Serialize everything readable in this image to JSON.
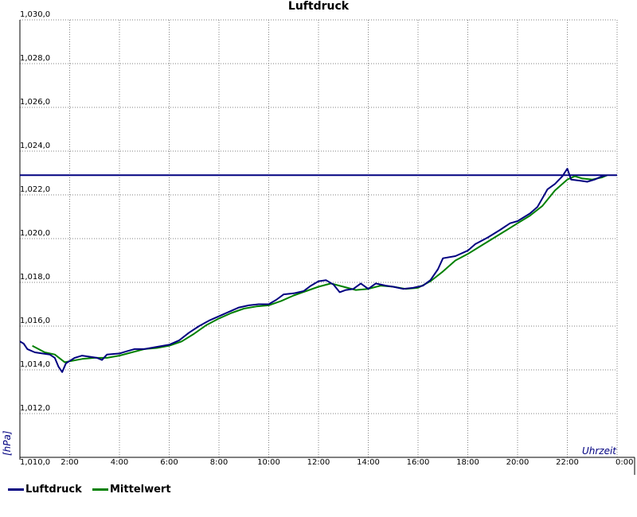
{
  "title": "Luftdruck",
  "colors": {
    "luftdruck": "#000080",
    "mittelwert": "#008000",
    "reference": "#000080",
    "grid": "#808080"
  },
  "legend": [
    {
      "name": "Luftdruck",
      "color": "#000080"
    },
    {
      "name": "Mittelwert",
      "color": "#008000"
    }
  ],
  "chart_data": {
    "type": "line",
    "title": "Luftdruck",
    "xlabel": "Uhrzeit",
    "ylabel": "[hPa]",
    "xlim": [
      0,
      24
    ],
    "ylim": [
      1010.0,
      1030.0
    ],
    "x_ticks": [
      "",
      "2:00",
      "4:00",
      "6:00",
      "8:00",
      "10:00",
      "12:00",
      "14:00",
      "16:00",
      "18:00",
      "20:00",
      "22:00",
      "0:00"
    ],
    "y_ticks": [
      "1,010,0",
      "1,012,0",
      "1,014,0",
      "1,016,0",
      "1,018,0",
      "1,020,0",
      "1,022,0",
      "1,024,0",
      "1,026,0",
      "1,028,0",
      "1,030,0"
    ],
    "grid": true,
    "legend_position": "bottom-left",
    "reference_line": {
      "y": 1022.9
    },
    "series": [
      {
        "name": "Luftdruck",
        "color": "#000080",
        "points": [
          [
            0.0,
            1015.3
          ],
          [
            0.15,
            1015.2
          ],
          [
            0.3,
            1014.95
          ],
          [
            0.6,
            1014.8
          ],
          [
            0.9,
            1014.75
          ],
          [
            1.2,
            1014.7
          ],
          [
            1.4,
            1014.55
          ],
          [
            1.55,
            1014.15
          ],
          [
            1.7,
            1013.9
          ],
          [
            1.85,
            1014.3
          ],
          [
            2.2,
            1014.55
          ],
          [
            2.5,
            1014.65
          ],
          [
            2.8,
            1014.6
          ],
          [
            3.1,
            1014.55
          ],
          [
            3.3,
            1014.45
          ],
          [
            3.5,
            1014.7
          ],
          [
            4.0,
            1014.75
          ],
          [
            4.3,
            1014.85
          ],
          [
            4.6,
            1014.95
          ],
          [
            5.0,
            1014.95
          ],
          [
            5.5,
            1015.05
          ],
          [
            6.0,
            1015.15
          ],
          [
            6.4,
            1015.35
          ],
          [
            6.8,
            1015.7
          ],
          [
            7.2,
            1016.0
          ],
          [
            7.6,
            1016.25
          ],
          [
            8.0,
            1016.45
          ],
          [
            8.4,
            1016.65
          ],
          [
            8.8,
            1016.85
          ],
          [
            9.2,
            1016.95
          ],
          [
            9.6,
            1017.0
          ],
          [
            10.0,
            1017.0
          ],
          [
            10.3,
            1017.2
          ],
          [
            10.6,
            1017.45
          ],
          [
            11.0,
            1017.5
          ],
          [
            11.4,
            1017.6
          ],
          [
            11.7,
            1017.85
          ],
          [
            12.0,
            1018.05
          ],
          [
            12.3,
            1018.1
          ],
          [
            12.6,
            1017.9
          ],
          [
            12.85,
            1017.55
          ],
          [
            13.1,
            1017.65
          ],
          [
            13.4,
            1017.7
          ],
          [
            13.7,
            1017.95
          ],
          [
            14.0,
            1017.7
          ],
          [
            14.3,
            1017.95
          ],
          [
            14.7,
            1017.85
          ],
          [
            15.0,
            1017.8
          ],
          [
            15.4,
            1017.7
          ],
          [
            15.8,
            1017.75
          ],
          [
            16.2,
            1017.85
          ],
          [
            16.5,
            1018.1
          ],
          [
            16.8,
            1018.6
          ],
          [
            17.0,
            1019.1
          ],
          [
            17.5,
            1019.2
          ],
          [
            18.0,
            1019.45
          ],
          [
            18.3,
            1019.75
          ],
          [
            18.8,
            1020.05
          ],
          [
            19.3,
            1020.4
          ],
          [
            19.7,
            1020.7
          ],
          [
            20.0,
            1020.8
          ],
          [
            20.5,
            1021.15
          ],
          [
            20.8,
            1021.45
          ],
          [
            21.0,
            1021.85
          ],
          [
            21.2,
            1022.25
          ],
          [
            21.5,
            1022.5
          ],
          [
            21.8,
            1022.85
          ],
          [
            22.0,
            1023.2
          ],
          [
            22.15,
            1022.7
          ],
          [
            22.5,
            1022.65
          ],
          [
            22.8,
            1022.6
          ],
          [
            23.1,
            1022.7
          ],
          [
            23.4,
            1022.85
          ],
          [
            23.6,
            1022.9
          ]
        ]
      },
      {
        "name": "Mittelwert",
        "color": "#008000",
        "points": [
          [
            0.5,
            1015.1
          ],
          [
            1.0,
            1014.8
          ],
          [
            1.4,
            1014.7
          ],
          [
            1.8,
            1014.35
          ],
          [
            2.5,
            1014.5
          ],
          [
            3.0,
            1014.55
          ],
          [
            3.5,
            1014.55
          ],
          [
            4.0,
            1014.65
          ],
          [
            4.5,
            1014.8
          ],
          [
            5.0,
            1014.95
          ],
          [
            5.5,
            1015.0
          ],
          [
            6.0,
            1015.1
          ],
          [
            6.5,
            1015.3
          ],
          [
            7.0,
            1015.65
          ],
          [
            7.5,
            1016.05
          ],
          [
            8.0,
            1016.35
          ],
          [
            8.5,
            1016.6
          ],
          [
            9.0,
            1016.8
          ],
          [
            9.5,
            1016.9
          ],
          [
            10.0,
            1016.95
          ],
          [
            10.5,
            1017.15
          ],
          [
            11.0,
            1017.4
          ],
          [
            11.5,
            1017.6
          ],
          [
            12.0,
            1017.8
          ],
          [
            12.5,
            1017.95
          ],
          [
            13.0,
            1017.8
          ],
          [
            13.5,
            1017.65
          ],
          [
            14.0,
            1017.7
          ],
          [
            14.5,
            1017.85
          ],
          [
            15.0,
            1017.8
          ],
          [
            15.5,
            1017.7
          ],
          [
            16.0,
            1017.75
          ],
          [
            16.5,
            1018.05
          ],
          [
            17.0,
            1018.5
          ],
          [
            17.5,
            1019.0
          ],
          [
            18.0,
            1019.3
          ],
          [
            18.5,
            1019.65
          ],
          [
            19.0,
            1020.0
          ],
          [
            19.5,
            1020.35
          ],
          [
            20.0,
            1020.7
          ],
          [
            20.5,
            1021.05
          ],
          [
            21.0,
            1021.5
          ],
          [
            21.5,
            1022.2
          ],
          [
            22.0,
            1022.7
          ],
          [
            22.3,
            1022.85
          ],
          [
            22.6,
            1022.75
          ],
          [
            23.0,
            1022.7
          ],
          [
            23.4,
            1022.8
          ],
          [
            23.6,
            1022.9
          ]
        ]
      }
    ]
  }
}
